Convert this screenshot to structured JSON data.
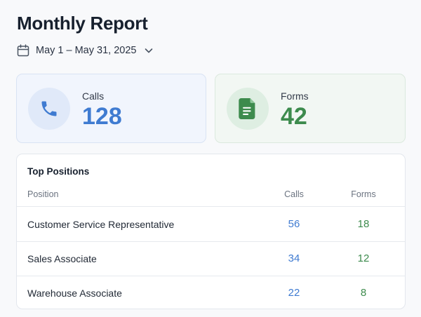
{
  "header": {
    "title": "Monthly Report",
    "date_range": "May 1 – May 31, 2025"
  },
  "stats": {
    "calls": {
      "label": "Calls",
      "value": "128",
      "icon": "phone-icon",
      "color": "#3f7bd1"
    },
    "forms": {
      "label": "Forms",
      "value": "42",
      "icon": "document-icon",
      "color": "#3d8b4d"
    }
  },
  "table": {
    "title": "Top Positions",
    "columns": [
      "Position",
      "Calls",
      "Forms"
    ],
    "rows": [
      {
        "position": "Customer Service Representative",
        "calls": "56",
        "forms": "18"
      },
      {
        "position": "Sales Associate",
        "calls": "34",
        "forms": "12"
      },
      {
        "position": "Warehouse Associate",
        "calls": "22",
        "forms": "8"
      }
    ]
  }
}
